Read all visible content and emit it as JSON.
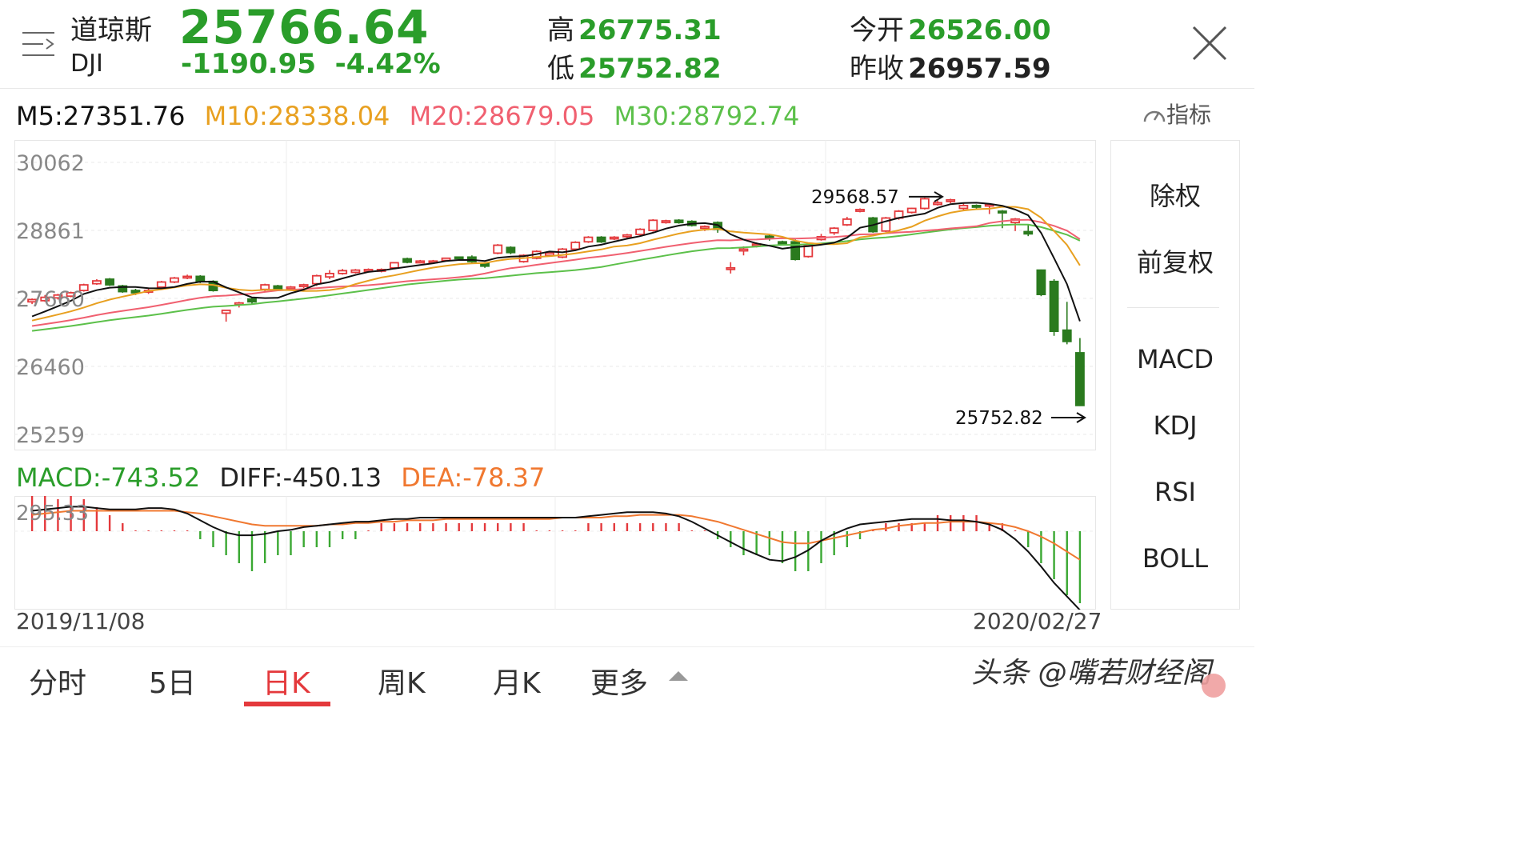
{
  "header": {
    "name_cn": "道琼斯",
    "code": "DJI",
    "price": "25766.64",
    "change": "-1190.95",
    "change_pct": "-4.42%",
    "high_label": "高",
    "high": "26775.31",
    "low_label": "低",
    "low": "25752.82",
    "open_label": "今开",
    "open": "26526.00",
    "prev_label": "昨收",
    "prev_close": "26957.59"
  },
  "ma": {
    "m5": "M5:27351.76",
    "m10": "M10:28338.04",
    "m20": "M20:28679.05",
    "m30": "M30:28792.74"
  },
  "indicator_label": "指标",
  "macd_row": {
    "macd": "MACD:-743.52",
    "diff": "DIFF:-450.13",
    "dea": "DEA:-78.37"
  },
  "dates": {
    "start": "2019/11/08",
    "end": "2020/02/27"
  },
  "side_panel": {
    "items": [
      "除权",
      "前复权",
      "MACD",
      "KDJ",
      "RSI",
      "BOLL"
    ]
  },
  "tabs": [
    "分时",
    "5日",
    "日K",
    "周K",
    "月K",
    "更多"
  ],
  "watermark": "头条 @嘴若财经阁",
  "colors": {
    "up": "#e4393c",
    "down": "#2a7a1e",
    "m5": "#111111",
    "m10": "#e8a020",
    "m20": "#f06070",
    "m30": "#5cc04a",
    "diff": "#111111",
    "dea": "#f07830"
  },
  "chart_data": [
    {
      "type": "candlestick",
      "title": "",
      "y_ticks": [
        "30062",
        "28861",
        "27660",
        "26460",
        "25259"
      ],
      "ylim": [
        25259,
        30062
      ],
      "annotations": [
        {
          "text": "29568.57",
          "value": 29568.57
        },
        {
          "text": "25752.82",
          "value": 25752.82
        }
      ],
      "candles": [
        [
          27600,
          27640,
          27560,
          27660
        ],
        [
          27620,
          27680,
          27600,
          27720
        ],
        [
          27670,
          27720,
          27640,
          27740
        ],
        [
          27700,
          27760,
          27680,
          27780
        ],
        [
          27800,
          27900,
          27780,
          27920
        ],
        [
          27920,
          27970,
          27900,
          28000
        ],
        [
          28000,
          27900,
          27880,
          28020
        ],
        [
          27880,
          27780,
          27760,
          27900
        ],
        [
          27800,
          27760,
          27720,
          27830
        ],
        [
          27780,
          27800,
          27740,
          27830
        ],
        [
          27860,
          27950,
          27840,
          27970
        ],
        [
          27950,
          28020,
          27930,
          28040
        ],
        [
          28030,
          28050,
          28000,
          28080
        ],
        [
          28050,
          27960,
          27930,
          28070
        ],
        [
          27960,
          27800,
          27780,
          27980
        ],
        [
          27400,
          27450,
          27250,
          27450
        ],
        [
          27550,
          27580,
          27500,
          27600
        ],
        [
          27650,
          27600,
          27560,
          27680
        ],
        [
          27820,
          27900,
          27780,
          27920
        ],
        [
          27880,
          27820,
          27800,
          27900
        ],
        [
          27830,
          27860,
          27800,
          27880
        ],
        [
          27870,
          27900,
          27840,
          27920
        ],
        [
          27920,
          28060,
          27880,
          28080
        ],
        [
          28040,
          28100,
          28000,
          28160
        ],
        [
          28100,
          28150,
          28080,
          28180
        ],
        [
          28120,
          28160,
          28100,
          28180
        ],
        [
          28140,
          28170,
          28120,
          28190
        ],
        [
          28150,
          28170,
          28120,
          28190
        ],
        [
          28200,
          28290,
          28180,
          28300
        ],
        [
          28360,
          28300,
          28280,
          28380
        ],
        [
          28290,
          28320,
          28280,
          28340
        ],
        [
          28300,
          28320,
          28290,
          28340
        ],
        [
          28330,
          28370,
          28310,
          28380
        ],
        [
          28390,
          28380,
          28370,
          28400
        ],
        [
          28390,
          28310,
          28290,
          28420
        ],
        [
          28280,
          28230,
          28200,
          28300
        ],
        [
          28460,
          28600,
          28440,
          28620
        ],
        [
          28560,
          28470,
          28440,
          28580
        ],
        [
          28310,
          28420,
          28290,
          28440
        ],
        [
          28370,
          28490,
          28350,
          28510
        ],
        [
          28420,
          28460,
          28400,
          28490
        ],
        [
          28390,
          28530,
          28370,
          28550
        ],
        [
          28530,
          28650,
          28500,
          28670
        ],
        [
          28660,
          28740,
          28640,
          28760
        ],
        [
          28740,
          28660,
          28640,
          28760
        ],
        [
          28720,
          28740,
          28690,
          28760
        ],
        [
          28750,
          28780,
          28720,
          28800
        ],
        [
          28790,
          28880,
          28770,
          28900
        ],
        [
          28860,
          29040,
          28840,
          29060
        ],
        [
          29000,
          29030,
          28980,
          29050
        ],
        [
          29040,
          29000,
          28980,
          29060
        ],
        [
          29020,
          28950,
          28930,
          29040
        ],
        [
          28900,
          28930,
          28850,
          28950
        ],
        [
          29000,
          28880,
          28820,
          29020
        ],
        [
          28200,
          28200,
          28100,
          28300
        ],
        [
          28500,
          28530,
          28420,
          28580
        ],
        [
          28600,
          28620,
          28560,
          28650
        ],
        [
          28760,
          28720,
          28680,
          28790
        ],
        [
          28660,
          28620,
          28600,
          28680
        ],
        [
          28660,
          28350,
          28330,
          28700
        ],
        [
          28400,
          28600,
          28380,
          28620
        ],
        [
          28700,
          28750,
          28680,
          28800
        ],
        [
          28820,
          28900,
          28780,
          28920
        ],
        [
          28960,
          29060,
          28940,
          29100
        ],
        [
          29200,
          29230,
          29180,
          29250
        ],
        [
          29080,
          28840,
          28820,
          29100
        ],
        [
          28850,
          29080,
          28830,
          29100
        ],
        [
          29080,
          29200,
          29050,
          29220
        ],
        [
          29180,
          29250,
          29160,
          29260
        ],
        [
          29250,
          29420,
          29230,
          29440
        ],
        [
          29320,
          29350,
          29300,
          29390
        ],
        [
          29380,
          29400,
          29340,
          29420
        ],
        [
          29250,
          29300,
          29200,
          29340
        ],
        [
          29300,
          29280,
          29240,
          29320
        ],
        [
          29320,
          29320,
          29150,
          29340
        ],
        [
          29200,
          29180,
          28900,
          29220
        ],
        [
          29000,
          29060,
          28850,
          29080
        ],
        [
          28840,
          28800,
          28760,
          28960
        ],
        [
          28160,
          27730,
          27700,
          28170
        ],
        [
          27960,
          27080,
          27000,
          28000
        ],
        [
          27100,
          26900,
          26850,
          27600
        ],
        [
          26700,
          25770,
          25760,
          26960
        ]
      ]
    },
    {
      "type": "bar",
      "title": "",
      "y_ticks": [
        "295.33"
      ],
      "histogram": [
        5,
        5,
        4,
        5,
        4,
        3,
        2,
        1,
        0,
        0,
        0,
        0,
        0,
        -1,
        -2,
        -3,
        -4,
        -5,
        -4,
        -3,
        -3,
        -2,
        -2,
        -2,
        -1,
        -1,
        0,
        1,
        1,
        1,
        1,
        1,
        1,
        1,
        1,
        1,
        1,
        1,
        1,
        0,
        0,
        0,
        0,
        1,
        1,
        1,
        1,
        1,
        1,
        1,
        1,
        0,
        0,
        -1,
        -2,
        -3,
        -3,
        -3,
        -4,
        -5,
        -5,
        -4,
        -3,
        -2,
        -1,
        0,
        1,
        1,
        1,
        1,
        2,
        2,
        2,
        2,
        1,
        1,
        0,
        -2,
        -4,
        -6,
        -8,
        -9
      ],
      "diff": [
        0.15,
        0.16,
        0.17,
        0.18,
        0.18,
        0.17,
        0.16,
        0.16,
        0.16,
        0.17,
        0.17,
        0.16,
        0.13,
        0.08,
        0.03,
        -0.01,
        -0.03,
        -0.03,
        -0.02,
        -0.0,
        0.01,
        0.03,
        0.04,
        0.05,
        0.06,
        0.07,
        0.07,
        0.08,
        0.09,
        0.09,
        0.1,
        0.1,
        0.1,
        0.1,
        0.1,
        0.1,
        0.1,
        0.1,
        0.1,
        0.1,
        0.1,
        0.1,
        0.1,
        0.11,
        0.12,
        0.13,
        0.14,
        0.14,
        0.14,
        0.13,
        0.11,
        0.07,
        0.02,
        -0.03,
        -0.08,
        -0.13,
        -0.17,
        -0.21,
        -0.22,
        -0.19,
        -0.14,
        -0.07,
        -0.02,
        0.02,
        0.05,
        0.06,
        0.07,
        0.08,
        0.09,
        0.09,
        0.09,
        0.08,
        0.08,
        0.07,
        0.05,
        0.01,
        -0.06,
        -0.15,
        -0.26,
        -0.38,
        -0.48,
        -0.58
      ],
      "dea": [
        0.12,
        0.13,
        0.14,
        0.15,
        0.15,
        0.15,
        0.15,
        0.15,
        0.15,
        0.15,
        0.15,
        0.15,
        0.14,
        0.13,
        0.11,
        0.09,
        0.07,
        0.05,
        0.04,
        0.04,
        0.04,
        0.04,
        0.04,
        0.05,
        0.05,
        0.06,
        0.06,
        0.07,
        0.07,
        0.08,
        0.08,
        0.08,
        0.09,
        0.09,
        0.09,
        0.09,
        0.09,
        0.09,
        0.09,
        0.09,
        0.09,
        0.1,
        0.1,
        0.1,
        0.1,
        0.11,
        0.11,
        0.12,
        0.12,
        0.12,
        0.12,
        0.11,
        0.09,
        0.07,
        0.04,
        0.01,
        -0.02,
        -0.05,
        -0.08,
        -0.09,
        -0.09,
        -0.07,
        -0.05,
        -0.03,
        -0.01,
        0.01,
        0.02,
        0.04,
        0.05,
        0.06,
        0.06,
        0.07,
        0.07,
        0.07,
        0.06,
        0.05,
        0.03,
        0.0,
        -0.04,
        -0.09,
        -0.15,
        -0.21
      ]
    }
  ]
}
